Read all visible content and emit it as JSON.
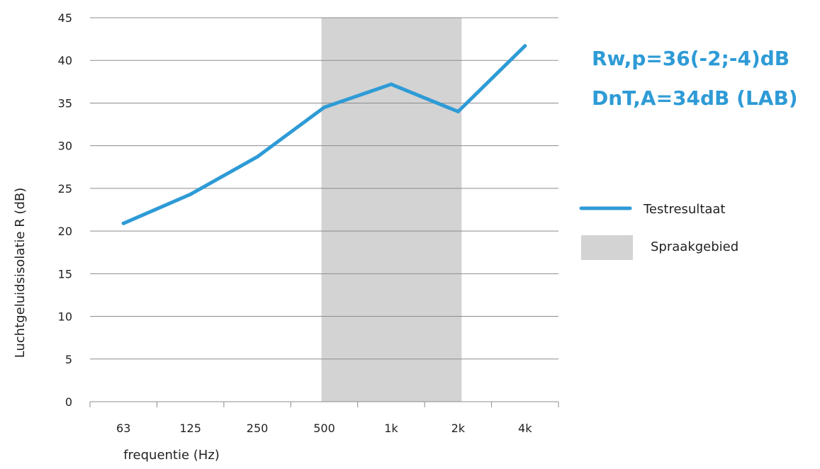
{
  "chart_data": {
    "type": "line",
    "categories": [
      "63",
      "125",
      "250",
      "500",
      "1k",
      "2k",
      "4k"
    ],
    "series": [
      {
        "name": "Testresultaat",
        "values": [
          20.9,
          24.3,
          28.7,
          34.5,
          37.2,
          34.0,
          41.7
        ],
        "color": "#2e9bd6"
      }
    ],
    "band": {
      "name": "Spraakgebied",
      "from": "500",
      "to": "2k",
      "color": "#d3d3d3"
    },
    "xlabel": "frequentie (Hz)",
    "ylabel": "Luchtgeluidsisolatie R (dB)",
    "ylim": [
      0,
      45
    ],
    "yticks": [
      0,
      5,
      10,
      15,
      20,
      25,
      30,
      35,
      40,
      45
    ],
    "grid": true,
    "legend": "right",
    "annotations": [
      "Rw,p=36(-2;-4)dB",
      "DnT,A=34dB (LAB)"
    ],
    "annotation_color": "#2e9bd6"
  }
}
